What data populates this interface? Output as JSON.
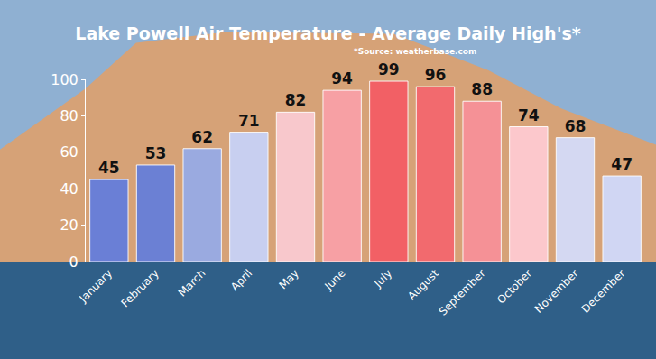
{
  "chart_data": {
    "type": "bar",
    "title": "Lake Powell Air Temperature - Average Daily High's*",
    "subtitle": "*Source: weatherbase.com",
    "categories": [
      "January",
      "February",
      "March",
      "April",
      "May",
      "June",
      "July",
      "August",
      "September",
      "October",
      "November",
      "December"
    ],
    "values": [
      45,
      53,
      62,
      71,
      82,
      94,
      99,
      96,
      88,
      74,
      68,
      47
    ],
    "colors": [
      "#6a7fd6",
      "#6b80d4",
      "#9aaae0",
      "#c8cff0",
      "#f8c8cc",
      "#f7a0a4",
      "#f26065",
      "#f26a6e",
      "#f59196",
      "#fcc8cc",
      "#d4d8f2",
      "#d0d6f3"
    ],
    "ylim": [
      0,
      100
    ],
    "yticks": [
      0,
      20,
      40,
      60,
      80,
      100
    ],
    "grid": false,
    "data_labels": true
  }
}
